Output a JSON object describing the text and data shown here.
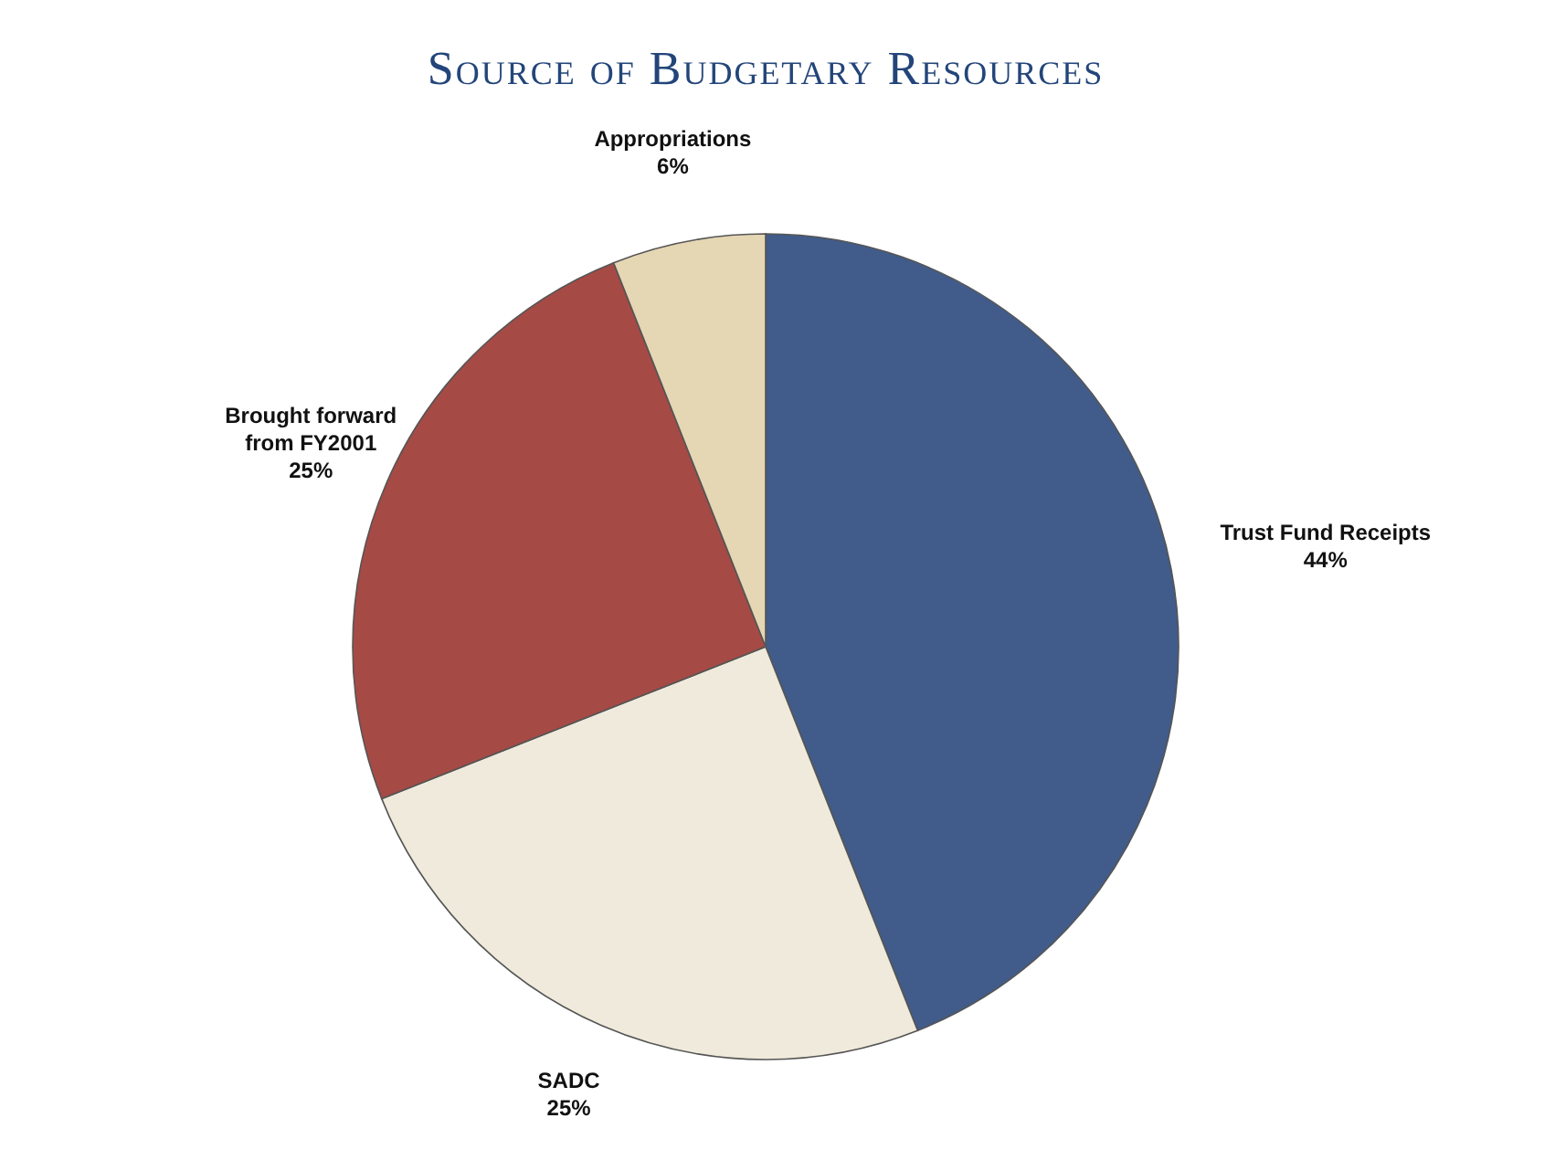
{
  "chart_data": {
    "type": "pie",
    "title": "Source of Budgetary Resources",
    "categories": [
      "Trust Fund Receipts",
      "SADC",
      "Brought forward from FY2001",
      "Appropriations"
    ],
    "values": [
      44,
      25,
      25,
      6
    ],
    "value_labels": [
      "44%",
      "25%",
      "25%",
      "6%"
    ],
    "colors": [
      "#415c8a",
      "#efeadb",
      "#a64a45",
      "#e5d6b4"
    ]
  }
}
